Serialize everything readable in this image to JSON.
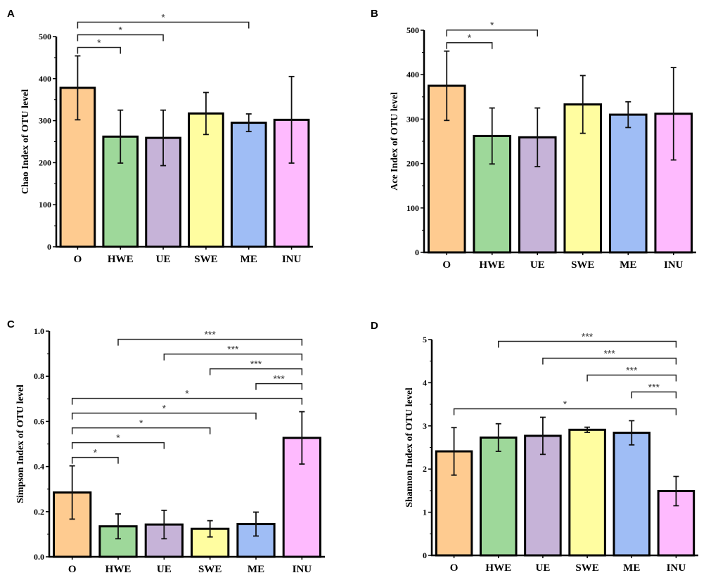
{
  "chart_data": [
    {
      "panel": "A",
      "type": "bar",
      "categories": [
        "O",
        "HWE",
        "UE",
        "SWE",
        "ME",
        "INU"
      ],
      "values": [
        378,
        262,
        259,
        317,
        295,
        302
      ],
      "errors": [
        76,
        63,
        66,
        50,
        21,
        103
      ],
      "ylabel": "Chao Index of OTU level",
      "ylim": [
        0,
        500
      ],
      "yticks": [
        0,
        100,
        200,
        300,
        400,
        500
      ],
      "ytick_labels": [
        "0",
        "100",
        "200",
        "300",
        "400",
        "500"
      ],
      "significance": [
        {
          "from": "O",
          "to": "HWE",
          "label": "*"
        },
        {
          "from": "O",
          "to": "UE",
          "label": "*"
        },
        {
          "from": "O",
          "to": "ME",
          "label": "*"
        }
      ]
    },
    {
      "panel": "B",
      "type": "bar",
      "categories": [
        "O",
        "HWE",
        "UE",
        "SWE",
        "ME",
        "INU"
      ],
      "values": [
        375,
        262,
        259,
        333,
        310,
        312
      ],
      "errors": [
        78,
        63,
        66,
        65,
        29,
        104
      ],
      "ylabel": "Ace Index of OTU level",
      "ylim": [
        0,
        500
      ],
      "yticks": [
        0,
        100,
        200,
        300,
        400,
        500
      ],
      "ytick_labels": [
        "0",
        "100",
        "200",
        "300",
        "400",
        "500"
      ],
      "significance": [
        {
          "from": "O",
          "to": "HWE",
          "label": "*"
        },
        {
          "from": "O",
          "to": "UE",
          "label": "*"
        }
      ]
    },
    {
      "panel": "C",
      "type": "bar",
      "categories": [
        "O",
        "HWE",
        "UE",
        "SWE",
        "ME",
        "INU"
      ],
      "values": [
        0.285,
        0.135,
        0.143,
        0.124,
        0.145,
        0.527
      ],
      "errors": [
        0.118,
        0.055,
        0.063,
        0.036,
        0.053,
        0.116
      ],
      "ylabel": "Simpson Index of OTU level",
      "ylim": [
        0,
        1.0
      ],
      "yticks": [
        0,
        0.2,
        0.4,
        0.6,
        0.8,
        1.0
      ],
      "ytick_labels": [
        "0.0",
        "0.2",
        "0.4",
        "0.6",
        "0.8",
        "1.0"
      ],
      "significance": [
        {
          "from": "O",
          "to": "HWE",
          "label": "*"
        },
        {
          "from": "O",
          "to": "UE",
          "label": "*"
        },
        {
          "from": "O",
          "to": "SWE",
          "label": "*"
        },
        {
          "from": "O",
          "to": "ME",
          "label": "*"
        },
        {
          "from": "O",
          "to": "INU",
          "label": "*"
        },
        {
          "from": "ME",
          "to": "INU",
          "label": "***"
        },
        {
          "from": "SWE",
          "to": "INU",
          "label": "***"
        },
        {
          "from": "UE",
          "to": "INU",
          "label": "***"
        },
        {
          "from": "HWE",
          "to": "INU",
          "label": "***"
        }
      ]
    },
    {
      "panel": "D",
      "type": "bar",
      "categories": [
        "O",
        "HWE",
        "UE",
        "SWE",
        "ME",
        "INU"
      ],
      "values": [
        2.41,
        2.73,
        2.77,
        2.91,
        2.84,
        1.49
      ],
      "errors": [
        0.55,
        0.32,
        0.43,
        0.06,
        0.28,
        0.34
      ],
      "ylabel": "Shannon Index of OTU level",
      "ylim": [
        0,
        5
      ],
      "yticks": [
        0,
        1,
        2,
        3,
        4,
        5
      ],
      "ytick_labels": [
        "0",
        "1",
        "2",
        "3",
        "4",
        "5"
      ],
      "significance": [
        {
          "from": "O",
          "to": "INU",
          "label": "*"
        },
        {
          "from": "ME",
          "to": "INU",
          "label": "***"
        },
        {
          "from": "SWE",
          "to": "INU",
          "label": "***"
        },
        {
          "from": "UE",
          "to": "INU",
          "label": "***"
        },
        {
          "from": "HWE",
          "to": "INU",
          "label": "***"
        }
      ]
    }
  ],
  "colors": {
    "O": "#FECB90",
    "HWE": "#9ED89A",
    "UE": "#C6B3D8",
    "SWE": "#FFFDA0",
    "ME": "#9FBDF5",
    "INU": "#FEBAFE"
  }
}
